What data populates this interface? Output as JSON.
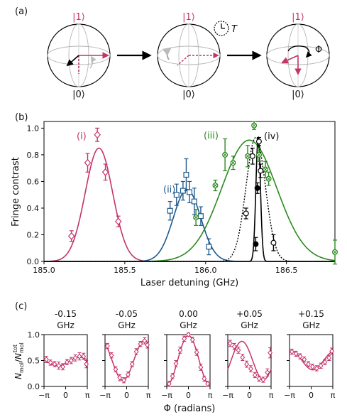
{
  "panel_labels": {
    "a": "(a)",
    "b": "(b)",
    "c": "(c)"
  },
  "bloch": {
    "state_top": "|1⟩",
    "state_bottom": "|0⟩",
    "clock_label": "T",
    "phase_label": "Φ"
  },
  "colors": {
    "i": "#c4336a",
    "ii": "#1f5a8c",
    "iii": "#2a8a1e",
    "iv": "#000000",
    "arrow_pink": "#c4336a",
    "sphere": "#b0b0b0"
  },
  "chart_data": [
    {
      "type": "scatter",
      "title": "",
      "xlabel": "Laser detuning (GHz)",
      "ylabel": "Fringe contrast",
      "xlim": [
        185.0,
        186.8
      ],
      "ylim": [
        0.0,
        1.05
      ],
      "xticks": [
        "185.0",
        "185.5",
        "186.0",
        "186.5"
      ],
      "yticks": [
        "0.0",
        "0.2",
        "0.4",
        "0.6",
        "0.8",
        "1.0"
      ],
      "grid": false,
      "series": [
        {
          "name": "(i)",
          "marker": "diamond",
          "x": [
            185.17,
            185.27,
            185.33,
            185.38,
            185.46
          ],
          "y": [
            0.19,
            0.74,
            0.95,
            0.67,
            0.3
          ],
          "err": [
            0.04,
            0.07,
            0.05,
            0.06,
            0.04
          ],
          "fit": {
            "center": 185.34,
            "sigma": 0.085,
            "amp": 0.85
          }
        },
        {
          "name": "(ii)",
          "marker": "square",
          "x": [
            185.78,
            185.82,
            185.86,
            185.88,
            185.9,
            185.93,
            185.97,
            186.02
          ],
          "y": [
            0.38,
            0.5,
            0.53,
            0.65,
            0.52,
            0.45,
            0.34,
            0.11
          ],
          "err": [
            0.07,
            0.08,
            0.07,
            0.12,
            0.08,
            0.1,
            0.07,
            0.06
          ],
          "fit": {
            "center": 185.885,
            "sigma": 0.085,
            "amp": 0.54
          }
        },
        {
          "name": "(iii)",
          "marker": "circle-x",
          "x": [
            185.94,
            186.06,
            186.12,
            186.17,
            186.26,
            186.3,
            186.33,
            186.37,
            186.39,
            186.8
          ],
          "y": [
            0.33,
            0.57,
            0.8,
            0.74,
            0.79,
            1.02,
            0.8,
            0.69,
            0.62,
            0.07
          ],
          "err": [
            0.06,
            0.04,
            0.12,
            0.05,
            0.08,
            0.03,
            0.05,
            0.06,
            0.05,
            0.09
          ],
          "fit": {
            "center": 186.27,
            "sigma": 0.17,
            "amp": 0.91
          }
        },
        {
          "name": "(iv)",
          "marker": "circle",
          "x": [
            186.25,
            186.29,
            186.31,
            186.32,
            186.33,
            186.34,
            186.42
          ],
          "y": [
            0.36,
            0.79,
            0.13,
            0.55,
            0.9,
            0.68,
            0.14
          ],
          "err": [
            0.04,
            0.06,
            0.05,
            0.04,
            0.03,
            0.05,
            0.06
          ],
          "filled": [
            false,
            false,
            true,
            true,
            false,
            false,
            false
          ],
          "fit": {
            "center": 186.325,
            "sigma": 0.014,
            "amp": 0.93
          },
          "fit_dotted": {
            "center": 186.31,
            "sigma": 0.06,
            "amp": 0.93
          }
        }
      ]
    },
    {
      "type": "scatter",
      "xlabel": "Φ (radians)",
      "ylabel": "Nmol/Nmol^tot",
      "ylim": [
        0.0,
        1.0
      ],
      "yticks": [
        "0.0",
        "0.5",
        "1.0"
      ],
      "xticks": [
        "−π",
        "0",
        "π"
      ],
      "panels": [
        {
          "title_line1": "-0.15",
          "title_line2": "GHz",
          "x": [
            -2.8,
            -2.2,
            -1.6,
            -1.0,
            -0.4,
            0.2,
            0.8,
            1.4,
            2.0,
            2.6,
            3.0
          ],
          "y": [
            0.52,
            0.46,
            0.43,
            0.4,
            0.38,
            0.47,
            0.5,
            0.55,
            0.58,
            0.58,
            0.43
          ],
          "err": [
            0.06,
            0.05,
            0.05,
            0.07,
            0.06,
            0.05,
            0.06,
            0.06,
            0.07,
            0.06,
            0.07
          ],
          "fit": {
            "offset": 0.48,
            "amp": 0.08,
            "phase": 2.0
          }
        },
        {
          "title_line1": "-0.05",
          "title_line2": "GHz",
          "x": [
            -2.8,
            -2.2,
            -1.6,
            -1.0,
            -0.4,
            0.2,
            0.8,
            1.4,
            2.0,
            2.6,
            3.0
          ],
          "y": [
            0.78,
            0.6,
            0.33,
            0.17,
            0.12,
            0.23,
            0.43,
            0.67,
            0.82,
            0.88,
            0.8
          ],
          "err": [
            0.05,
            0.05,
            0.05,
            0.06,
            0.05,
            0.05,
            0.05,
            0.06,
            0.05,
            0.06,
            0.06
          ],
          "fit": {
            "offset": 0.5,
            "amp": 0.38,
            "phase": 2.6
          }
        },
        {
          "title_line1": "0.00",
          "title_line2": "GHz",
          "x": [
            -2.8,
            -2.3,
            -1.8,
            -1.2,
            -0.6,
            0.0,
            0.6,
            1.2,
            1.8,
            2.3,
            2.8
          ],
          "y": [
            0.05,
            0.2,
            0.44,
            0.7,
            0.92,
            1.0,
            0.9,
            0.66,
            0.37,
            0.15,
            0.05
          ],
          "err": [
            0.05,
            0.05,
            0.06,
            0.06,
            0.05,
            0.03,
            0.05,
            0.06,
            0.06,
            0.05,
            0.05
          ],
          "fit": {
            "offset": 0.5,
            "amp": 0.48,
            "phase": 0.0
          }
        },
        {
          "title_line1": "+0.05",
          "title_line2": "GHz",
          "x": [
            -2.8,
            -2.2,
            -1.6,
            -1.0,
            -0.4,
            0.2,
            0.8,
            1.4,
            2.0,
            2.6,
            3.0
          ],
          "y": [
            0.83,
            0.77,
            0.7,
            0.56,
            0.43,
            0.34,
            0.22,
            0.15,
            0.13,
            0.27,
            0.65
          ],
          "err": [
            0.06,
            0.06,
            0.06,
            0.06,
            0.06,
            0.06,
            0.05,
            0.05,
            0.05,
            0.07,
            0.1
          ],
          "fit": {
            "offset": 0.5,
            "amp": 0.37,
            "phase": -1.1
          }
        },
        {
          "title_line1": "+0.15",
          "title_line2": "GHz",
          "x": [
            -2.8,
            -2.2,
            -1.6,
            -1.0,
            -0.4,
            0.2,
            0.8,
            1.4,
            2.0,
            2.6,
            3.0
          ],
          "y": [
            0.67,
            0.63,
            0.58,
            0.52,
            0.43,
            0.38,
            0.35,
            0.4,
            0.47,
            0.55,
            0.68
          ],
          "err": [
            0.05,
            0.05,
            0.05,
            0.05,
            0.05,
            0.05,
            0.05,
            0.05,
            0.05,
            0.05,
            0.06
          ],
          "fit": {
            "offset": 0.5,
            "amp": 0.18,
            "phase": -2.9
          }
        }
      ]
    }
  ]
}
